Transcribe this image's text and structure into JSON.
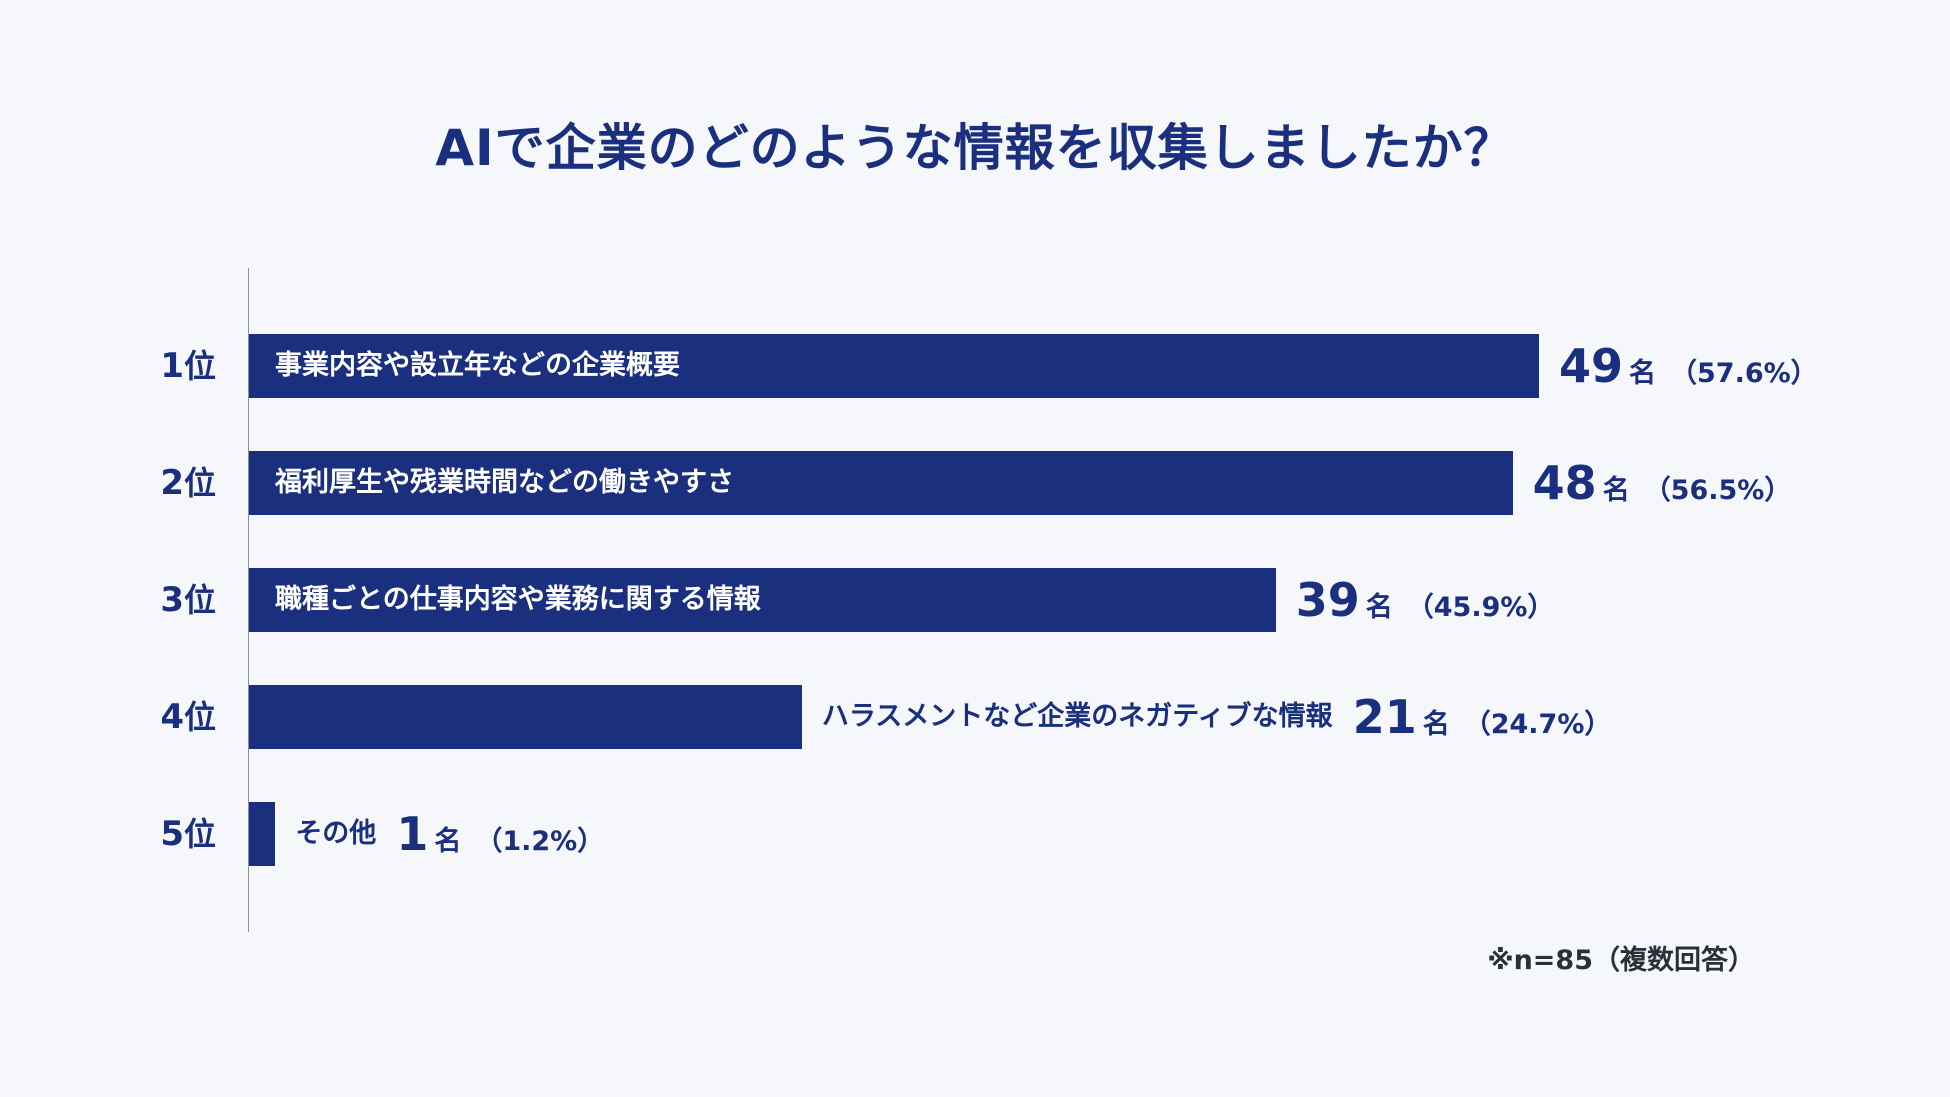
{
  "title": "AIで企業のどのような情報を収集しましたか？",
  "footnote": "※n=85（複数回答）",
  "colors": {
    "bar": "#1b2f7f",
    "text": "#1b2f7f",
    "background": "#f5f7fa"
  },
  "chart_data": {
    "type": "bar",
    "orientation": "horizontal",
    "title": "AIで企業のどのような情報を収集しましたか？",
    "rank_suffix": "位",
    "unit": "名",
    "xlim": [
      0,
      49
    ],
    "categories": [
      "事業内容や設立年などの企業概要",
      "福利厚生や残業時間などの働きやすさ",
      "職種ごとの仕事内容や業務に関する情報",
      "ハラスメントなど企業のネガティブな情報",
      "その他"
    ],
    "ranks": [
      "1",
      "2",
      "3",
      "4",
      "5"
    ],
    "values": [
      49,
      48,
      39,
      21,
      1
    ],
    "percent_labels": [
      "（57.6%）",
      "（56.5%）",
      "（45.9%）",
      "（24.7%）",
      "（1.2%）"
    ],
    "grid": false,
    "legend": "none"
  }
}
